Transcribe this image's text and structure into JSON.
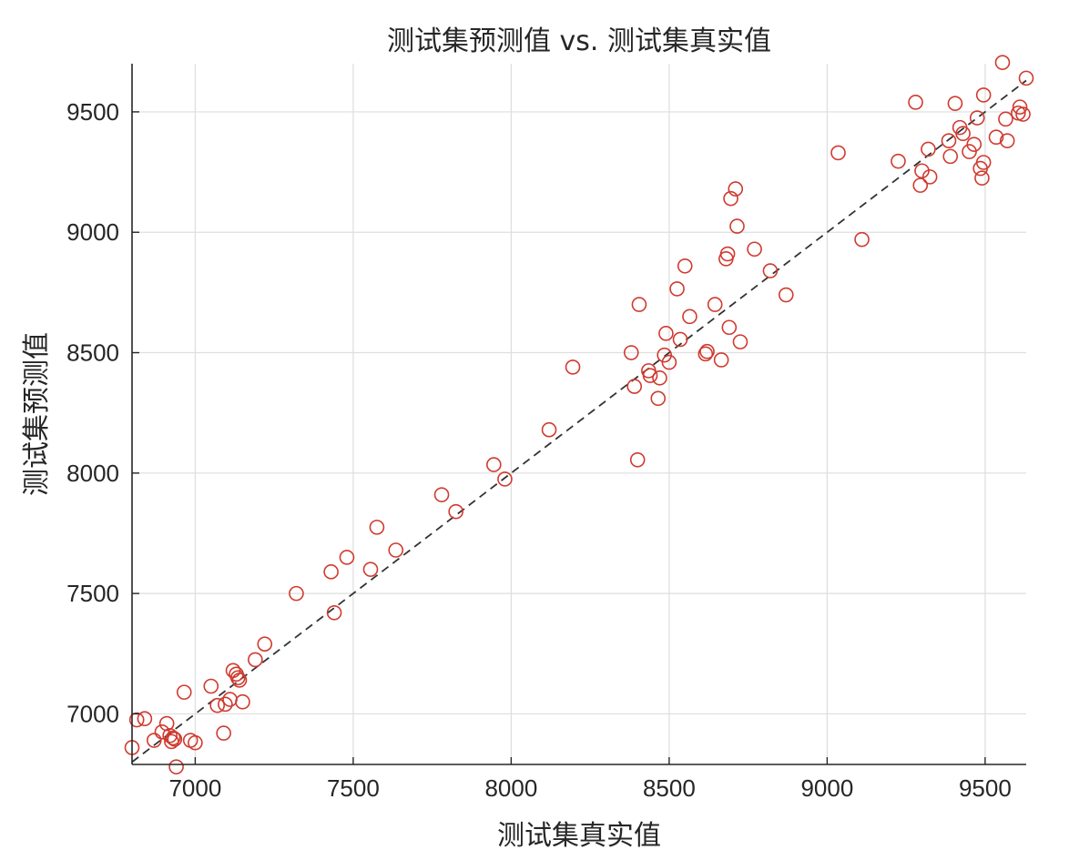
{
  "chart_data": {
    "type": "scatter",
    "title": "测试集预测值 vs. 测试集真实值",
    "xlabel": "测试集真实值",
    "ylabel": "测试集预测值",
    "xlim": [
      6800,
      9630
    ],
    "ylim": [
      6790,
      9700
    ],
    "xticks": [
      7000,
      7500,
      8000,
      8500,
      9000,
      9500
    ],
    "yticks": [
      7000,
      7500,
      8000,
      8500,
      9000,
      9500
    ],
    "grid": true,
    "reference_line": {
      "style": "dashed",
      "color": "#333333",
      "from": [
        6800,
        6800
      ],
      "to": [
        9630,
        9630
      ]
    },
    "colors": {
      "points": "#d03a2f",
      "axes": "#262626",
      "grid": "#dedede"
    },
    "series": [
      {
        "marker": "circle-open",
        "x": [
          6800,
          6815,
          6840,
          6870,
          6895,
          6910,
          6920,
          6925,
          6930,
          6935,
          6940,
          6965,
          6985,
          7000,
          7050,
          7070,
          7090,
          7095,
          7110,
          7120,
          7130,
          7135,
          7140,
          7150,
          7190,
          7220,
          7320,
          7430,
          7440,
          7480,
          7555,
          7575,
          7635,
          7780,
          7825,
          7945,
          7980,
          8120,
          8195,
          8380,
          8390,
          8400,
          8405,
          8435,
          8440,
          8465,
          8470,
          8485,
          8490,
          8500,
          8525,
          8535,
          8550,
          8565,
          8615,
          8620,
          8645,
          8665,
          8680,
          8685,
          8690,
          8695,
          8710,
          8715,
          8725,
          8770,
          8820,
          8870,
          9035,
          9110,
          9225,
          9280,
          9295,
          9300,
          9320,
          9325,
          9385,
          9390,
          9405,
          9420,
          9430,
          9450,
          9465,
          9475,
          9485,
          9490,
          9495,
          9495,
          9535,
          9555,
          9565,
          9570,
          9605,
          9610,
          9620,
          9630
        ],
        "y": [
          6860,
          6975,
          6980,
          6890,
          6925,
          6960,
          6910,
          6885,
          6900,
          6895,
          6780,
          7090,
          6890,
          6880,
          7115,
          7035,
          6920,
          7040,
          7060,
          7180,
          7165,
          7150,
          7140,
          7050,
          7225,
          7290,
          7500,
          7590,
          7420,
          7650,
          7600,
          7775,
          7680,
          7910,
          7840,
          8035,
          7975,
          8180,
          8440,
          8500,
          8360,
          8055,
          8700,
          8425,
          8405,
          8310,
          8395,
          8490,
          8580,
          8460,
          8765,
          8555,
          8860,
          8650,
          8495,
          8505,
          8700,
          8470,
          8890,
          8910,
          8605,
          9140,
          9180,
          9025,
          8545,
          8930,
          8840,
          8740,
          9330,
          8970,
          9295,
          9540,
          9195,
          9255,
          9345,
          9230,
          9380,
          9315,
          9535,
          9435,
          9410,
          9335,
          9365,
          9475,
          9265,
          9225,
          9290,
          9570,
          9395,
          9705,
          9470,
          9380,
          9495,
          9520,
          9490,
          9640
        ]
      }
    ]
  }
}
